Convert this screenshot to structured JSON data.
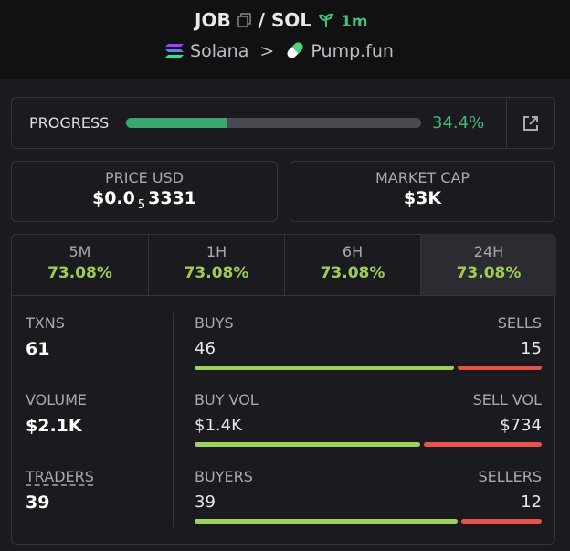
{
  "header": {
    "base": "JOB",
    "separator": "/",
    "quote": "SOL",
    "age": "1m",
    "chain": "Solana",
    "arrow": ">",
    "platform": "Pump.fun"
  },
  "progress": {
    "label": "PROGRESS",
    "percent": 34.4,
    "percent_label": "34.4%"
  },
  "price": {
    "label": "PRICE USD",
    "prefix": "$0.0",
    "zero_count": "5",
    "digits": "3331"
  },
  "market_cap": {
    "label": "MARKET CAP",
    "value": "$3K"
  },
  "tabs": [
    {
      "period": "5M",
      "change": "73.08%"
    },
    {
      "period": "1H",
      "change": "73.08%"
    },
    {
      "period": "6H",
      "change": "73.08%"
    },
    {
      "period": "24H",
      "change": "73.08%"
    }
  ],
  "stats": [
    {
      "label": "TXNS",
      "value": "61",
      "buy_label": "BUYS",
      "sell_label": "SELLS",
      "buy": {
        "value": 46,
        "label": "46"
      },
      "sell": {
        "value": 15,
        "label": "15"
      }
    },
    {
      "label": "VOLUME",
      "value": "$2.1K",
      "buy_label": "BUY VOL",
      "sell_label": "SELL VOL",
      "buy": {
        "value": 1400,
        "label": "$1.4K"
      },
      "sell": {
        "value": 734,
        "label": "$734"
      }
    },
    {
      "label": "TRADERS",
      "value": "39",
      "buy_label": "BUYERS",
      "sell_label": "SELLERS",
      "buy": {
        "value": 39,
        "label": "39"
      },
      "sell": {
        "value": 12,
        "label": "12"
      }
    }
  ]
}
